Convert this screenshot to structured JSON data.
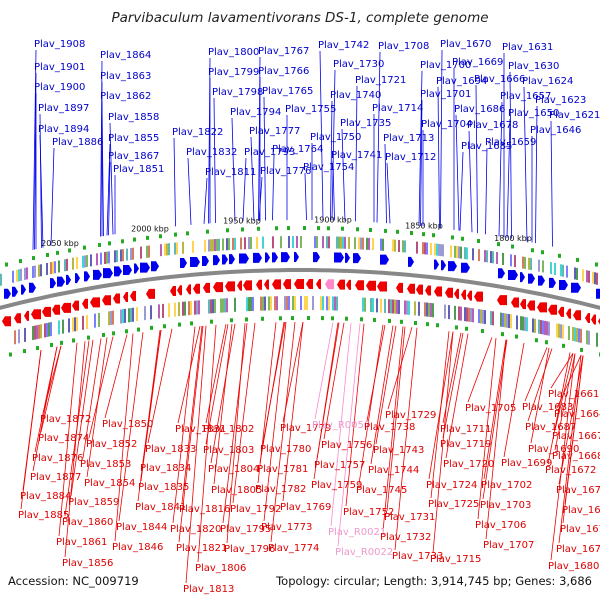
{
  "title": "Parvibaculum lavamentivorans DS-1, complete genome",
  "footer": {
    "accession": "Accession: NC_009719",
    "summary": "Topology: circular; Length: 3,914,745 bp; Genes: 3,686"
  },
  "scale_labels": [
    "2050 kbp",
    "2000 kbp",
    "1950 kbp",
    "1900 kbp",
    "1850 kbp",
    "1800 kbp"
  ],
  "top_genes": [
    "Plav_1908",
    "Plav_1901",
    "Plav_1900",
    "Plav_1897",
    "Plav_1894",
    "Plav_1886",
    "Plav_1864",
    "Plav_1863",
    "Plav_1862",
    "Plav_1858",
    "Plav_1855",
    "Plav_1867",
    "Plav_1851",
    "Plav_1822",
    "Plav_1832",
    "Plav_1811",
    "Plav_1800",
    "Plav_1799",
    "Plav_1798",
    "Plav_1794",
    "Plav_1793",
    "Plav_1767",
    "Plav_1766",
    "Plav_1765",
    "Plav_1777",
    "Plav_1776",
    "Plav_1764",
    "Plav_1755",
    "Plav_1754",
    "Plav_1742",
    "Plav_1730",
    "Plav_1740",
    "Plav_1750",
    "Plav_1741",
    "Plav_1735",
    "Plav_1708",
    "Plav_1721",
    "Plav_1714",
    "Plav_1713",
    "Plav_1712",
    "Plav_1700",
    "Plav_1701",
    "Plav_1704",
    "Plav_1694",
    "Plav_1686",
    "Plav_1685",
    "Plav_1670",
    "Plav_1669",
    "Plav_1666",
    "Plav_1678",
    "Plav_1657",
    "Plav_1659",
    "Plav_1631",
    "Plav_1630",
    "Plav_1624",
    "Plav_1650",
    "Plav_1623",
    "Plav_1646",
    "Plav_1621"
  ],
  "bottom_genes": [
    "Plav_1872",
    "Plav_1874",
    "Plav_1876",
    "Plav_1877",
    "Plav_1884",
    "Plav_1885",
    "Plav_1850",
    "Plav_1852",
    "Plav_1853",
    "Plav_1854",
    "Plav_1859",
    "Plav_1860",
    "Plav_1861",
    "Plav_1856",
    "Plav_1831",
    "Plav_1833",
    "Plav_1834",
    "Plav_1835",
    "Plav_1841",
    "Plav_1844",
    "Plav_1846",
    "Plav_1802",
    "Plav_1803",
    "Plav_1804",
    "Plav_1805",
    "Plav_1816",
    "Plav_1820",
    "Plav_1821",
    "Plav_1806",
    "Plav_1813",
    "Plav_1792",
    "Plav_1795",
    "Plav_1796",
    "Plav_1779",
    "Plav_1780",
    "Plav_1781",
    "Plav_1782",
    "Plav_1769",
    "Plav_1773",
    "Plav_1774",
    "Plav_R0050",
    "Plav_1756",
    "Plav_1757",
    "Plav_1759",
    "Plav_1752",
    "Plav_R0021",
    "Plav_R0022",
    "Plav_1729",
    "Plav_1738",
    "Plav_1743",
    "Plav_1744",
    "Plav_1745",
    "Plav_1731",
    "Plav_1732",
    "Plav_1733",
    "Plav_1705",
    "Plav_1711",
    "Plav_1719",
    "Plav_1720",
    "Plav_1724",
    "Plav_1725",
    "Plav_1715",
    "Plav_1683",
    "Plav_1687",
    "Plav_1690",
    "Plav_1699",
    "Plav_1702",
    "Plav_1703",
    "Plav_1706",
    "Plav_1707",
    "Plav_1661",
    "Plav_1664",
    "Plav_1667",
    "Plav_1668",
    "Plav_1672",
    "Plav_1674",
    "Plav_1675",
    "Plav_1676",
    "Plav_1677",
    "Plav_1680"
  ],
  "colors": {
    "forward": "#0000ee",
    "reverse": "#ee0000",
    "rna": "#ff88cc",
    "backbone": "#888888",
    "category_swatches": [
      "#4444aa",
      "#66aa44",
      "#aa44aa",
      "#44aaaa",
      "#aaaa22",
      "#8888cc",
      "#cc6644",
      "#22cccc",
      "#6666ff",
      "#ffcc33",
      "#aa3366",
      "#338833"
    ]
  }
}
